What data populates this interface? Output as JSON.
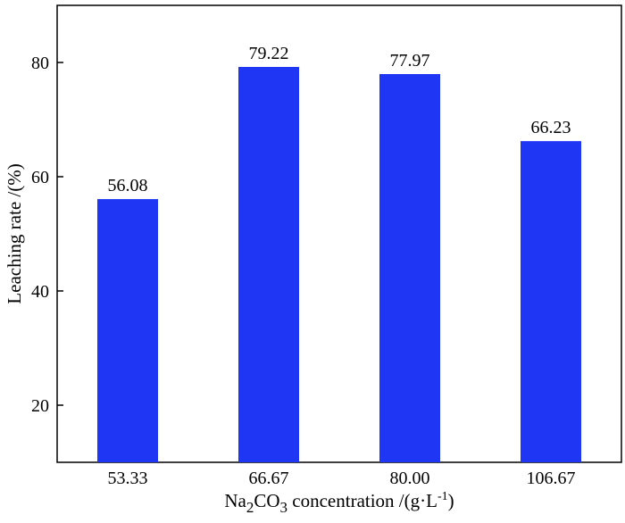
{
  "chart_data": {
    "type": "bar",
    "categories": [
      "53.33",
      "66.67",
      "80.00",
      "106.67"
    ],
    "values": [
      56.08,
      79.22,
      77.97,
      66.23
    ],
    "value_labels": [
      "56.08",
      "79.22",
      "77.97",
      "66.23"
    ],
    "ylim": [
      10,
      90
    ],
    "yticks": [
      20,
      40,
      60,
      80
    ],
    "ytick_labels": [
      "20",
      "40",
      "60",
      "80"
    ],
    "ylabel": "Leaching rate /(%)",
    "xlabel": {
      "prefix": "Na",
      "sub1": "2",
      "mid": "CO",
      "sub2": "3",
      "suffix": " concentration /(g·L",
      "sup": "-1",
      "close": ")"
    },
    "bar_color": "#1f36f5",
    "grid": false,
    "legend": "none"
  }
}
